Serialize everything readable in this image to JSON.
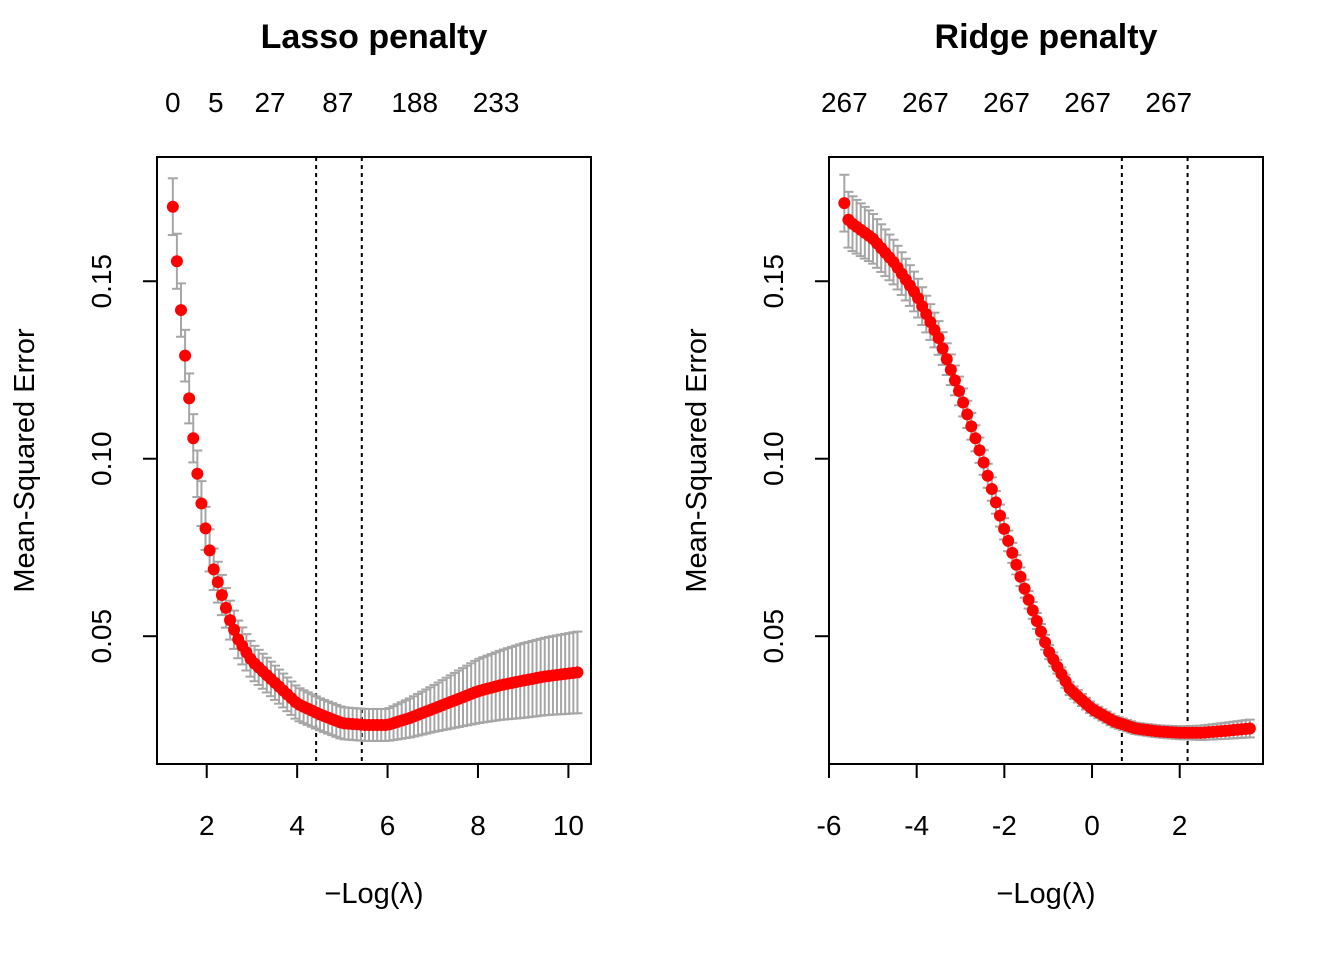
{
  "chart_data": [
    {
      "type": "scatter",
      "title": "Lasso penalty",
      "xlabel_prefix": "−",
      "xlabel_main": "Log(λ)",
      "ylabel": "Mean-Squared Error",
      "xlim": [
        0.9,
        10.5
      ],
      "ylim": [
        0.014,
        0.185
      ],
      "xticks": [
        2,
        4,
        6,
        8,
        10
      ],
      "yticks": [
        0.05,
        0.1,
        0.15
      ],
      "ytick_labels": [
        "0.05",
        "0.10",
        "0.15"
      ],
      "top_axis": {
        "ticks": [
          1.25,
          2.2,
          3.4,
          4.9,
          6.6,
          8.4
        ],
        "labels": [
          "0",
          "5",
          "27",
          "87",
          "188",
          "233"
        ]
      },
      "vlines": [
        4.42,
        5.43
      ],
      "x_range": [
        1.25,
        10.2
      ],
      "n_points": 100,
      "curve_points": [
        [
          1.25,
          0.171
        ],
        [
          1.35,
          0.154
        ],
        [
          1.45,
          0.139
        ],
        [
          1.55,
          0.125
        ],
        [
          1.65,
          0.112
        ],
        [
          1.75,
          0.1
        ],
        [
          1.85,
          0.09
        ],
        [
          1.95,
          0.082
        ],
        [
          2.05,
          0.075
        ],
        [
          2.15,
          0.069
        ],
        [
          2.3,
          0.063
        ],
        [
          2.5,
          0.055
        ],
        [
          2.7,
          0.049
        ],
        [
          3.0,
          0.043
        ],
        [
          3.5,
          0.037
        ],
        [
          4.0,
          0.031
        ],
        [
          4.5,
          0.028
        ],
        [
          5.0,
          0.0255
        ],
        [
          5.5,
          0.025
        ],
        [
          6.0,
          0.025
        ],
        [
          6.5,
          0.027
        ],
        [
          7.0,
          0.0295
        ],
        [
          7.5,
          0.032
        ],
        [
          8.0,
          0.0345
        ],
        [
          8.5,
          0.0362
        ],
        [
          9.0,
          0.0375
        ],
        [
          9.5,
          0.0387
        ],
        [
          10.2,
          0.0398
        ]
      ],
      "se_points": [
        [
          1.25,
          0.008
        ],
        [
          2.0,
          0.006
        ],
        [
          3.0,
          0.005
        ],
        [
          4.5,
          0.0045
        ],
        [
          5.5,
          0.0045
        ],
        [
          6.0,
          0.0045
        ],
        [
          7.0,
          0.0065
        ],
        [
          8.0,
          0.009
        ],
        [
          9.0,
          0.0105
        ],
        [
          10.2,
          0.0115
        ]
      ]
    },
    {
      "type": "scatter",
      "title": "Ridge penalty",
      "xlabel_prefix": "−",
      "xlabel_main": "Log(λ)",
      "ylabel": "Mean-Squared Error",
      "xlim": [
        -6.0,
        3.9
      ],
      "ylim": [
        0.014,
        0.185
      ],
      "xticks": [
        -6,
        -4,
        -2,
        0,
        2
      ],
      "yticks": [
        0.05,
        0.1,
        0.15
      ],
      "ytick_labels": [
        "0.05",
        "0.10",
        "0.15"
      ],
      "top_axis": {
        "ticks": [
          -5.65,
          -3.8,
          -1.95,
          -0.1,
          1.75
        ],
        "labels": [
          "267",
          "267",
          "267",
          "267",
          "267"
        ]
      },
      "vlines": [
        0.68,
        2.18
      ],
      "x_range": [
        -5.65,
        3.6
      ],
      "n_points": 100,
      "curve_points": [
        [
          -5.65,
          0.172
        ],
        [
          -5.55,
          0.167
        ],
        [
          -5.0,
          0.162
        ],
        [
          -4.5,
          0.155
        ],
        [
          -4.0,
          0.146
        ],
        [
          -3.5,
          0.134
        ],
        [
          -3.0,
          0.118
        ],
        [
          -2.5,
          0.1
        ],
        [
          -2.0,
          0.08
        ],
        [
          -1.5,
          0.062
        ],
        [
          -1.0,
          0.046
        ],
        [
          -0.5,
          0.035
        ],
        [
          0.0,
          0.0295
        ],
        [
          0.5,
          0.026
        ],
        [
          1.0,
          0.024
        ],
        [
          1.5,
          0.0232
        ],
        [
          2.0,
          0.0228
        ],
        [
          2.5,
          0.0228
        ],
        [
          3.0,
          0.0233
        ],
        [
          3.6,
          0.024
        ]
      ],
      "se_points": [
        [
          -5.65,
          0.008
        ],
        [
          -5.0,
          0.007
        ],
        [
          -4.0,
          0.0055
        ],
        [
          -3.0,
          0.004
        ],
        [
          -2.0,
          0.003
        ],
        [
          -1.0,
          0.002
        ],
        [
          0.0,
          0.0016
        ],
        [
          1.0,
          0.0016
        ],
        [
          2.0,
          0.0018
        ],
        [
          3.6,
          0.0025
        ]
      ]
    }
  ]
}
